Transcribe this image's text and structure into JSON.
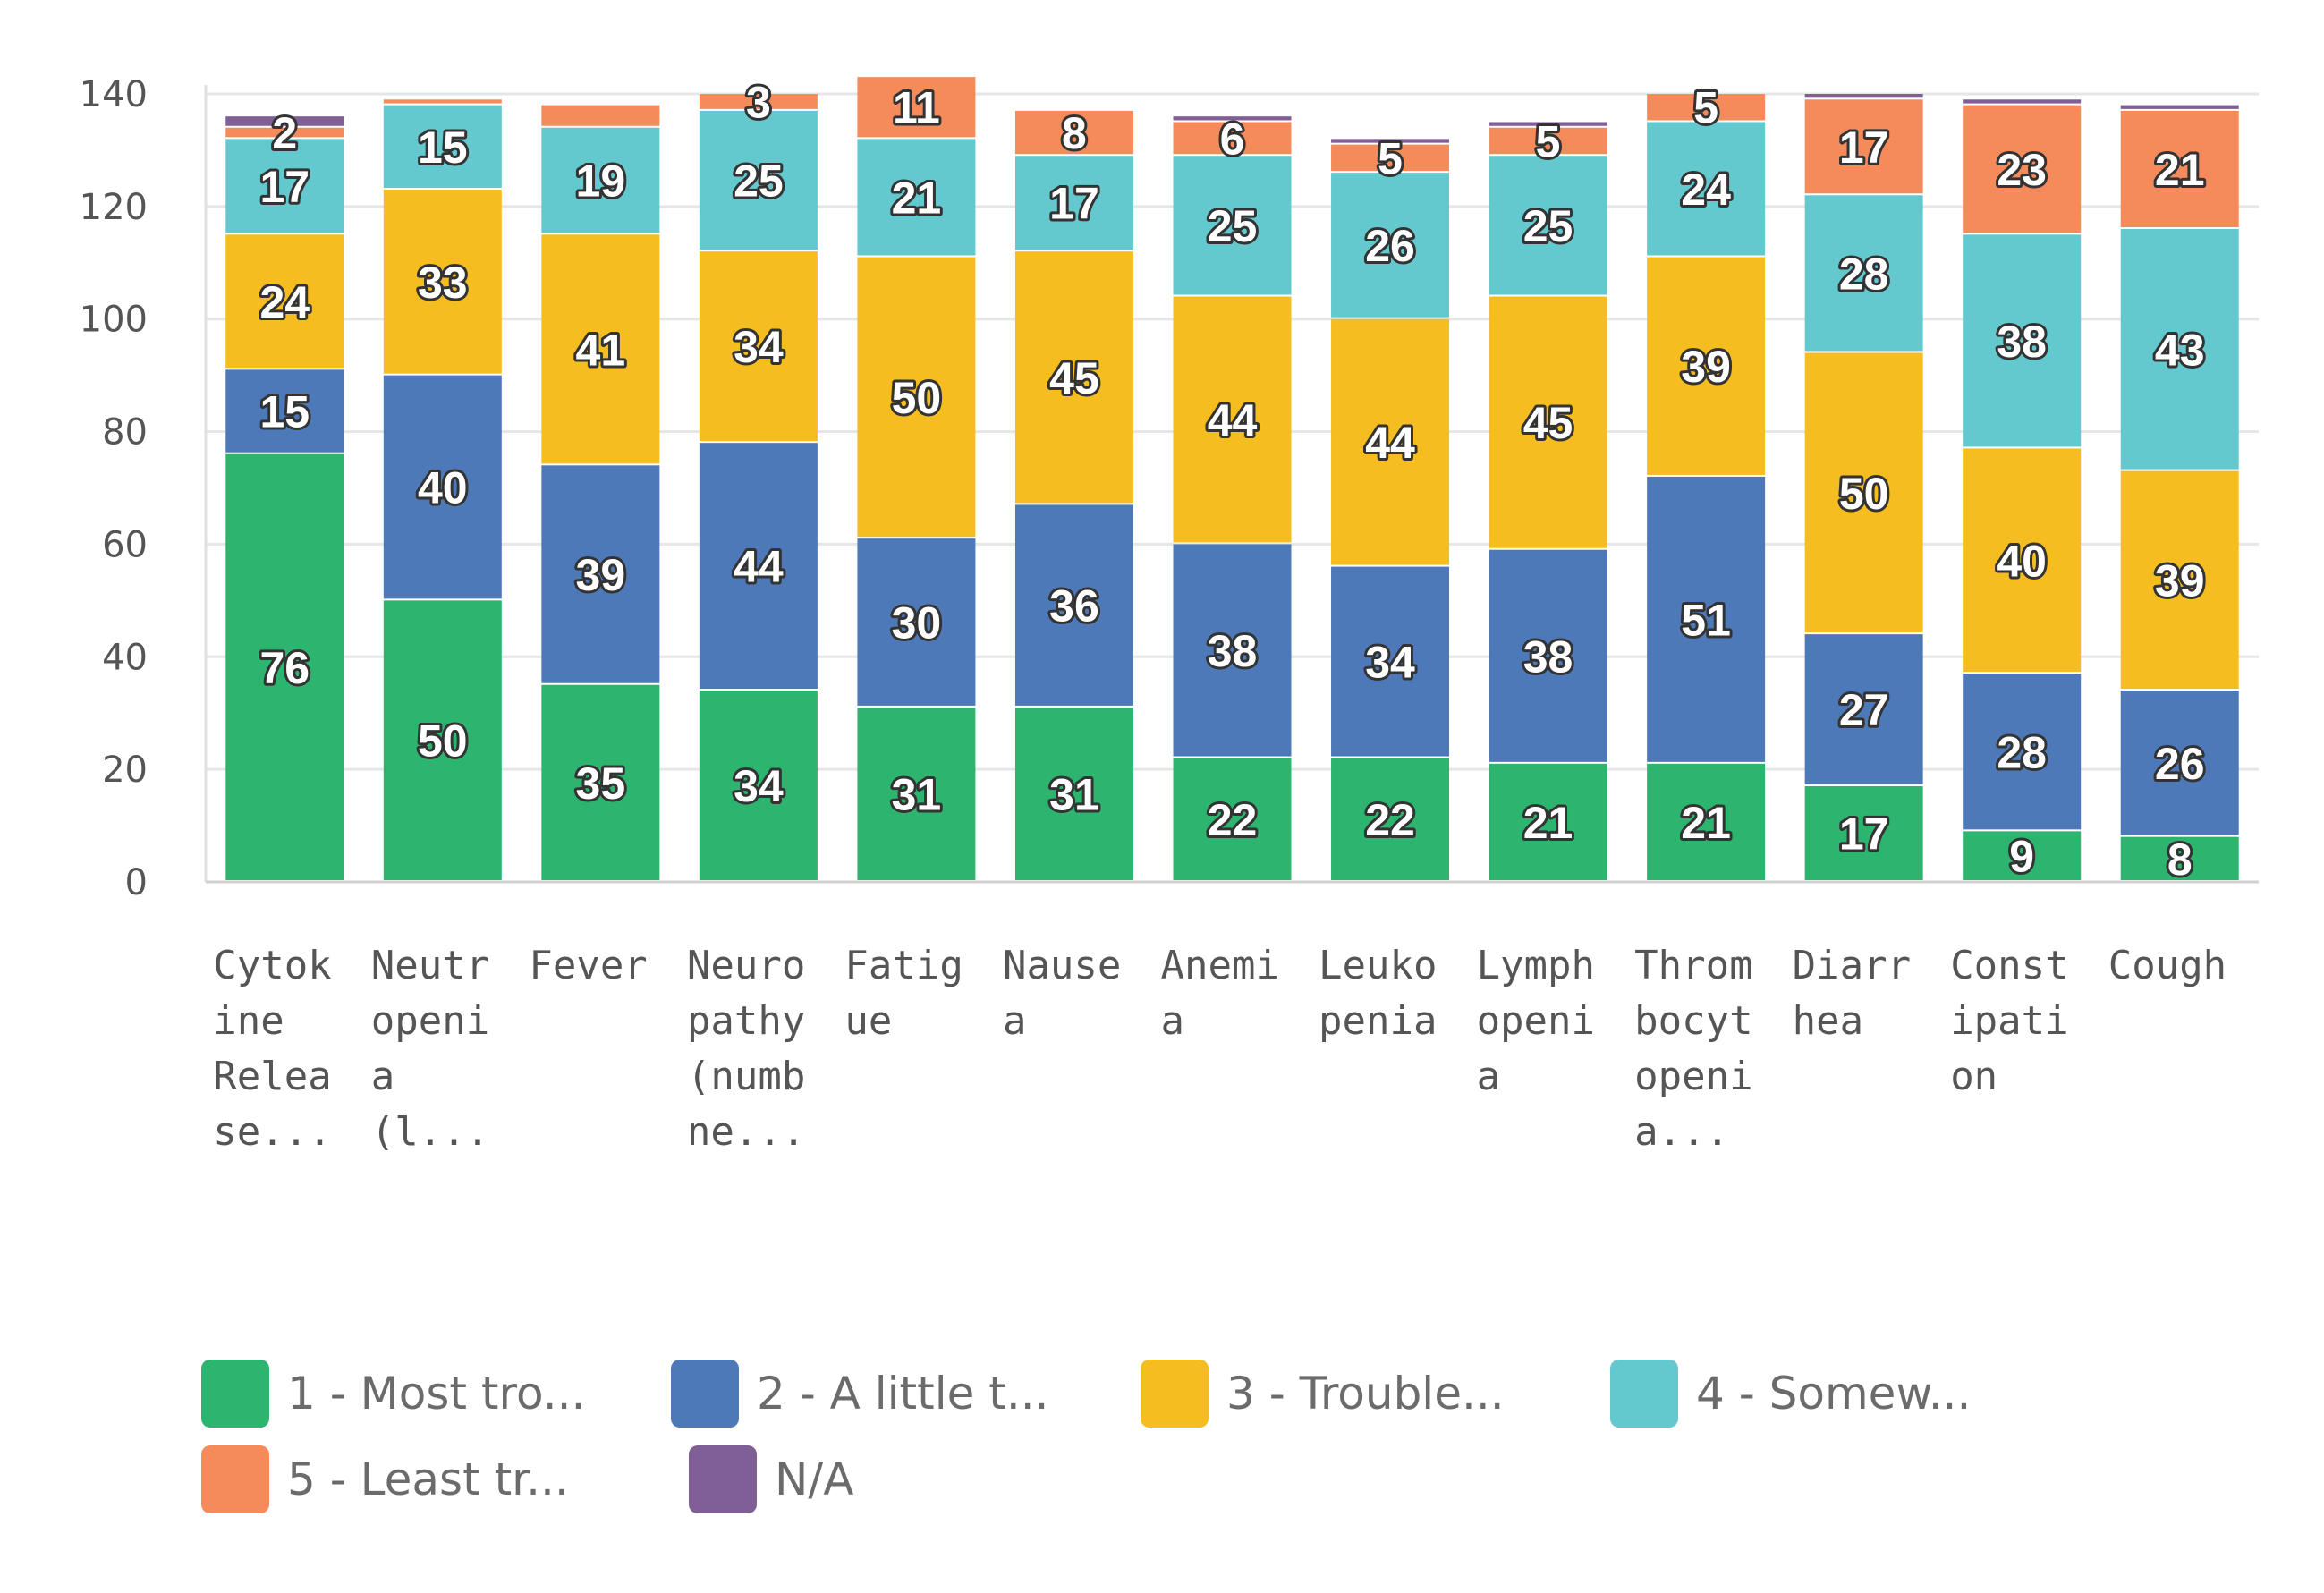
{
  "chart_data": {
    "type": "bar",
    "stacked": true,
    "title": "",
    "xlabel": "",
    "ylabel": "",
    "ylim": [
      0,
      140
    ],
    "yticks": [
      0,
      20,
      40,
      60,
      80,
      100,
      120,
      140
    ],
    "grid": true,
    "legend_position": "bottom",
    "categories": [
      "Cytok ine Relea se...",
      "Neutr openi a (l...",
      "Fever",
      "Neuro pathy (numb ne...",
      "Fatig ue",
      "Nause a",
      "Anemi a",
      "Leuko penia",
      "Lymph openi a",
      "Throm bocyt openi a...",
      "Diarr hea",
      "Const ipati on",
      "Cough"
    ],
    "category_lines": [
      [
        "Cytok",
        "ine",
        "Relea",
        "se..."
      ],
      [
        "Neutr",
        "openi",
        "a",
        "(l..."
      ],
      [
        "Fever"
      ],
      [
        "Neuro",
        "pathy",
        "(numb",
        "ne..."
      ],
      [
        "Fatig",
        "ue"
      ],
      [
        "Nause",
        "a"
      ],
      [
        "Anemi",
        "a"
      ],
      [
        "Leuko",
        "penia"
      ],
      [
        "Lymph",
        "openi",
        "a"
      ],
      [
        "Throm",
        "bocyt",
        "openi",
        "a..."
      ],
      [
        "Diarr",
        "hea"
      ],
      [
        "Const",
        "ipati",
        "on"
      ],
      [
        "Cough"
      ]
    ],
    "series": [
      {
        "name": "1 - Most tro...",
        "color": "#2db46e",
        "values": [
          76,
          50,
          35,
          34,
          31,
          31,
          22,
          22,
          21,
          21,
          17,
          9,
          8
        ],
        "labels": [
          "76",
          "50",
          "35",
          "34",
          "31",
          "31",
          "22",
          "22",
          "21",
          "21",
          "17",
          "9",
          "8"
        ]
      },
      {
        "name": "2 - A little t...",
        "color": "#4e79b8",
        "values": [
          15,
          40,
          39,
          44,
          30,
          36,
          38,
          34,
          38,
          51,
          27,
          28,
          26
        ],
        "labels": [
          "15",
          "40",
          "39",
          "44",
          "30",
          "36",
          "38",
          "34",
          "38",
          "51",
          "27",
          "28",
          "26"
        ]
      },
      {
        "name": "3 - Trouble...",
        "color": "#f5bd1f",
        "values": [
          24,
          33,
          41,
          34,
          50,
          45,
          44,
          44,
          45,
          39,
          50,
          40,
          39
        ],
        "labels": [
          "24",
          "33",
          "41",
          "34",
          "50",
          "45",
          "44",
          "44",
          "45",
          "39",
          "50",
          "40",
          "39"
        ]
      },
      {
        "name": "4 - Somew...",
        "color": "#64c8cf",
        "values": [
          17,
          15,
          19,
          25,
          21,
          17,
          25,
          26,
          25,
          24,
          28,
          38,
          43
        ],
        "labels": [
          "17",
          "15",
          "19",
          "25",
          "21",
          "17",
          "25",
          "26",
          "25",
          "24",
          "28",
          "38",
          "43"
        ]
      },
      {
        "name": "5 - Least tr...",
        "color": "#f58b5a",
        "values": [
          2,
          1,
          4,
          3,
          11,
          8,
          6,
          5,
          5,
          5,
          17,
          23,
          21
        ],
        "labels": [
          "2",
          "",
          "",
          "3",
          "11",
          "8",
          "6",
          "5",
          "5",
          "5",
          "17",
          "23",
          "21"
        ]
      },
      {
        "name": "N/A",
        "color": "#7f5f95",
        "values": [
          2,
          0,
          0,
          0,
          0,
          0,
          1,
          1,
          1,
          0,
          1,
          1,
          1
        ],
        "labels": [
          "",
          "",
          "",
          "",
          "",
          "",
          "",
          "",
          "",
          "",
          "",
          "",
          ""
        ]
      }
    ]
  }
}
